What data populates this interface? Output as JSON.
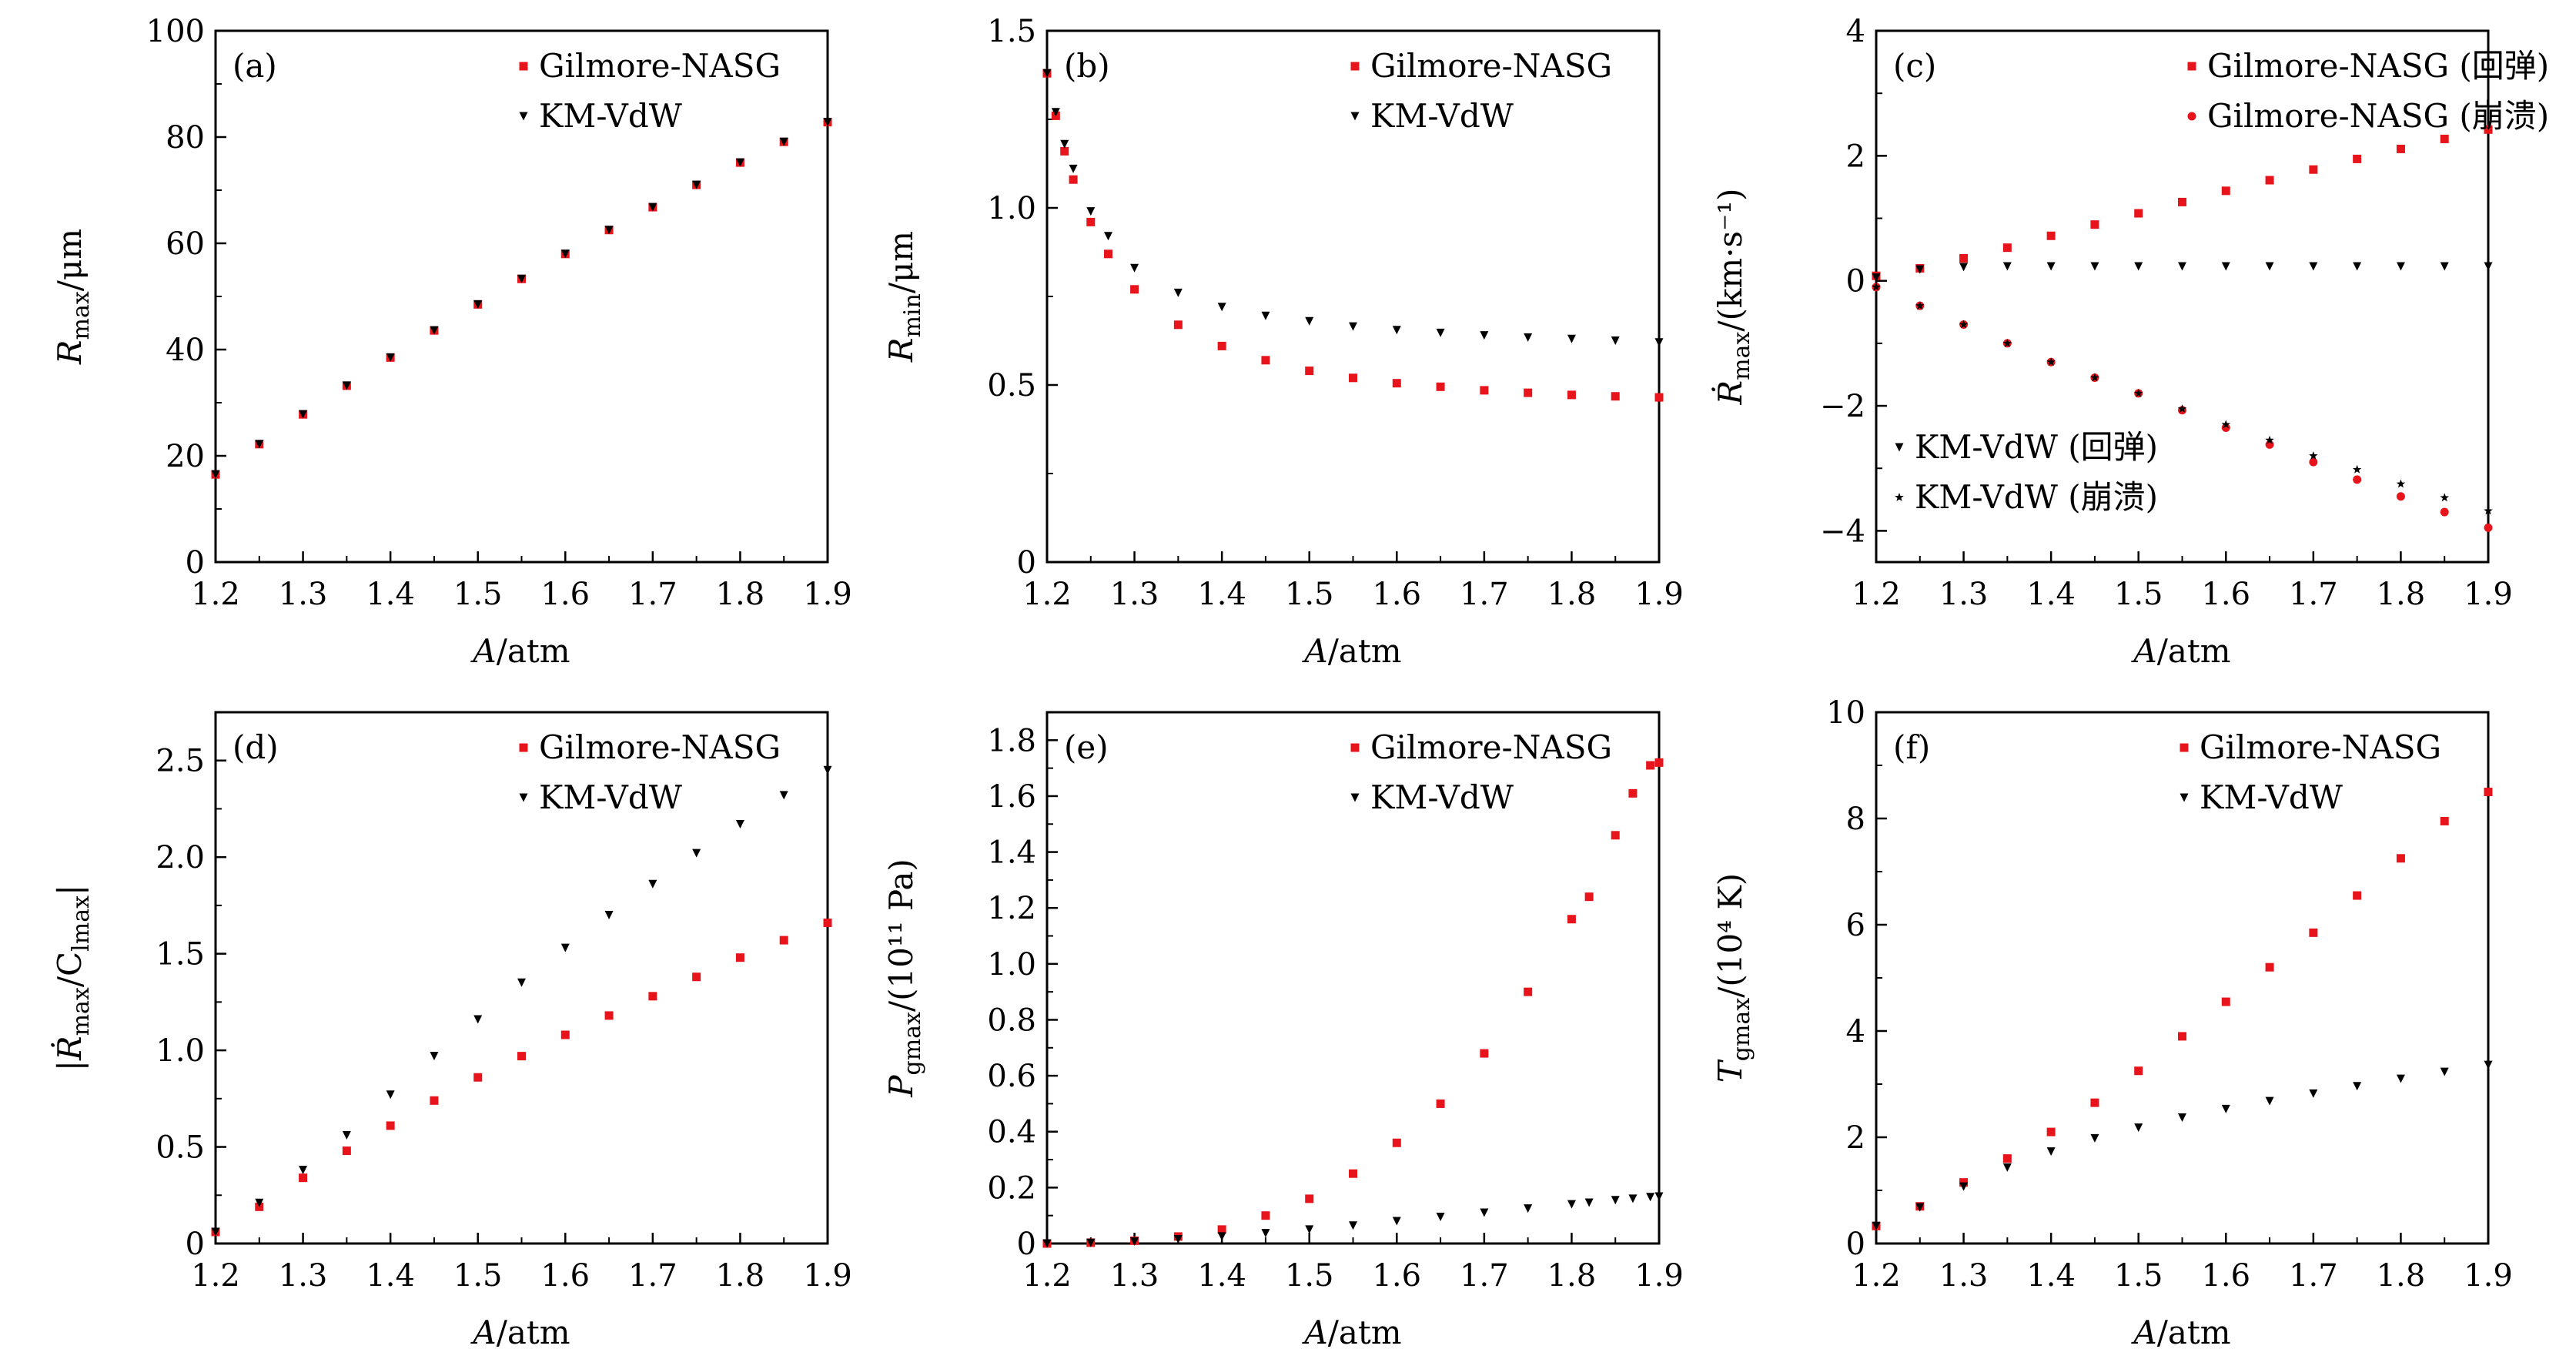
{
  "colors": {
    "gilmore": "#e8141c",
    "km": "#000000",
    "axis": "#000000"
  },
  "chart_data": [
    {
      "type": "scatter",
      "panel": "(a)",
      "xlabel": "A/atm",
      "ylabel": "R_max/μm",
      "xlim": [
        1.2,
        1.9
      ],
      "ylim": [
        0,
        100
      ],
      "xticks": [
        "1.2",
        "1.3",
        "1.4",
        "1.5",
        "1.6",
        "1.7",
        "1.8",
        "1.9"
      ],
      "yticks": [
        "0",
        "20",
        "40",
        "60",
        "80",
        "100"
      ],
      "ytick_values": [
        0,
        20,
        40,
        60,
        80,
        100
      ],
      "legend_position": "top-right",
      "x": [
        1.2,
        1.25,
        1.3,
        1.35,
        1.4,
        1.45,
        1.5,
        1.55,
        1.6,
        1.65,
        1.7,
        1.75,
        1.8,
        1.85,
        1.9
      ],
      "series": [
        {
          "name": "Gilmore-NASG",
          "marker": "square",
          "values": [
            16.5,
            22.2,
            27.8,
            33.2,
            38.5,
            43.6,
            48.5,
            53.3,
            58.0,
            62.5,
            66.8,
            71.0,
            75.2,
            79.1,
            82.8
          ]
        },
        {
          "name": "KM-VdW",
          "marker": "triangle-down",
          "values": [
            16.5,
            22.2,
            27.8,
            33.2,
            38.5,
            43.6,
            48.5,
            53.3,
            58.0,
            62.5,
            66.8,
            71.0,
            75.2,
            79.1,
            82.8
          ]
        }
      ]
    },
    {
      "type": "scatter",
      "panel": "(b)",
      "xlabel": "A/atm",
      "ylabel": "R_min/μm",
      "xlim": [
        1.2,
        1.9
      ],
      "ylim": [
        0,
        1.5
      ],
      "xticks": [
        "1.2",
        "1.3",
        "1.4",
        "1.5",
        "1.6",
        "1.7",
        "1.8",
        "1.9"
      ],
      "yticks": [
        "0",
        "0.5",
        "1.0",
        "1.5"
      ],
      "ytick_values": [
        0,
        0.5,
        1.0,
        1.5
      ],
      "legend_position": "top-right",
      "x": [
        1.2,
        1.21,
        1.22,
        1.23,
        1.25,
        1.27,
        1.3,
        1.35,
        1.4,
        1.45,
        1.5,
        1.55,
        1.6,
        1.65,
        1.7,
        1.75,
        1.8,
        1.85,
        1.9
      ],
      "series": [
        {
          "name": "Gilmore-NASG",
          "marker": "square",
          "values": [
            1.38,
            1.26,
            1.16,
            1.08,
            0.96,
            0.87,
            0.77,
            0.67,
            0.61,
            0.57,
            0.54,
            0.52,
            0.505,
            0.495,
            0.485,
            0.478,
            0.472,
            0.468,
            0.465
          ]
        },
        {
          "name": "KM-VdW",
          "marker": "triangle-down",
          "values": [
            1.38,
            1.27,
            1.18,
            1.11,
            0.99,
            0.92,
            0.83,
            0.76,
            0.72,
            0.695,
            0.68,
            0.665,
            0.655,
            0.647,
            0.64,
            0.634,
            0.63,
            0.625,
            0.62
          ]
        }
      ]
    },
    {
      "type": "scatter",
      "panel": "(c)",
      "xlabel": "A/atm",
      "ylabel": "Ṙ_max/(km·s⁻¹)",
      "xlim": [
        1.2,
        1.9
      ],
      "ylim": [
        -4.5,
        4
      ],
      "xticks": [
        "1.2",
        "1.3",
        "1.4",
        "1.5",
        "1.6",
        "1.7",
        "1.8",
        "1.9"
      ],
      "yticks": [
        "−4",
        "−2",
        "0",
        "2",
        "4"
      ],
      "ytick_values": [
        -4,
        -2,
        0,
        2,
        4
      ],
      "legend_position": "top-right and bottom-left",
      "x": [
        1.2,
        1.25,
        1.3,
        1.35,
        1.4,
        1.45,
        1.5,
        1.55,
        1.6,
        1.65,
        1.7,
        1.75,
        1.8,
        1.85,
        1.9
      ],
      "series": [
        {
          "name": "Gilmore-NASG (回弹)",
          "marker": "square",
          "color": "#e8141c",
          "values": [
            0.08,
            0.2,
            0.36,
            0.53,
            0.72,
            0.9,
            1.08,
            1.26,
            1.44,
            1.61,
            1.78,
            1.95,
            2.11,
            2.27,
            2.42
          ]
        },
        {
          "name": "Gilmore-NASG (崩溃)",
          "marker": "circle",
          "color": "#e8141c",
          "values": [
            -0.1,
            -0.4,
            -0.7,
            -1.0,
            -1.3,
            -1.55,
            -1.8,
            -2.07,
            -2.35,
            -2.62,
            -2.9,
            -3.18,
            -3.45,
            -3.7,
            -3.95
          ]
        },
        {
          "name": "KM-VdW (回弹)",
          "marker": "triangle-down",
          "color": "#000000",
          "values": [
            0.05,
            0.18,
            0.22,
            0.23,
            0.23,
            0.23,
            0.23,
            0.23,
            0.23,
            0.23,
            0.23,
            0.23,
            0.23,
            0.23,
            0.23
          ]
        },
        {
          "name": "KM-VdW (崩溃)",
          "marker": "star",
          "color": "#000000",
          "values": [
            -0.1,
            -0.4,
            -0.7,
            -1.0,
            -1.3,
            -1.55,
            -1.8,
            -2.05,
            -2.3,
            -2.55,
            -2.8,
            -3.02,
            -3.25,
            -3.47,
            -3.68
          ]
        }
      ]
    },
    {
      "type": "scatter",
      "panel": "(d)",
      "xlabel": "A/atm",
      "ylabel": "|Ṙ_max/C_lmax|",
      "xlim": [
        1.2,
        1.9
      ],
      "ylim": [
        0,
        2.75
      ],
      "xticks": [
        "1.2",
        "1.3",
        "1.4",
        "1.5",
        "1.6",
        "1.7",
        "1.8",
        "1.9"
      ],
      "yticks": [
        "0",
        "0.5",
        "1.0",
        "1.5",
        "2.0",
        "2.5"
      ],
      "ytick_values": [
        0,
        0.5,
        1.0,
        1.5,
        2.0,
        2.5
      ],
      "legend_position": "top-right",
      "x": [
        1.2,
        1.25,
        1.3,
        1.35,
        1.4,
        1.45,
        1.5,
        1.55,
        1.6,
        1.65,
        1.7,
        1.75,
        1.8,
        1.85,
        1.9
      ],
      "series": [
        {
          "name": "Gilmore-NASG",
          "marker": "square",
          "values": [
            0.06,
            0.19,
            0.34,
            0.48,
            0.61,
            0.74,
            0.86,
            0.97,
            1.08,
            1.18,
            1.28,
            1.38,
            1.48,
            1.57,
            1.66
          ]
        },
        {
          "name": "KM-VdW",
          "marker": "triangle-down",
          "values": [
            0.06,
            0.21,
            0.38,
            0.56,
            0.77,
            0.97,
            1.16,
            1.35,
            1.53,
            1.7,
            1.86,
            2.02,
            2.17,
            2.32,
            2.45
          ]
        }
      ]
    },
    {
      "type": "scatter",
      "panel": "(e)",
      "xlabel": "A/atm",
      "ylabel": "P_gmax/(10¹¹ Pa)",
      "xlim": [
        1.2,
        1.9
      ],
      "ylim": [
        0,
        1.9
      ],
      "xticks": [
        "1.2",
        "1.3",
        "1.4",
        "1.5",
        "1.6",
        "1.7",
        "1.8",
        "1.9"
      ],
      "yticks": [
        "0",
        "0.2",
        "0.4",
        "0.6",
        "0.8",
        "1.0",
        "1.2",
        "1.4",
        "1.6",
        "1.8"
      ],
      "ytick_values": [
        0,
        0.2,
        0.4,
        0.6,
        0.8,
        1.0,
        1.2,
        1.4,
        1.6,
        1.8
      ],
      "legend_position": "top-right",
      "x": [
        1.2,
        1.25,
        1.3,
        1.35,
        1.4,
        1.45,
        1.5,
        1.55,
        1.6,
        1.65,
        1.7,
        1.75,
        1.8,
        1.82,
        1.85,
        1.87,
        1.89,
        1.9
      ],
      "series": [
        {
          "name": "Gilmore-NASG",
          "marker": "square",
          "values": [
            0.0,
            0.003,
            0.01,
            0.025,
            0.05,
            0.1,
            0.16,
            0.25,
            0.36,
            0.5,
            0.68,
            0.9,
            1.16,
            1.24,
            1.46,
            1.61,
            1.71,
            1.72
          ]
        },
        {
          "name": "KM-VdW",
          "marker": "triangle-down",
          "values": [
            0.0,
            0.002,
            0.007,
            0.015,
            0.025,
            0.037,
            0.05,
            0.064,
            0.08,
            0.095,
            0.11,
            0.125,
            0.14,
            0.146,
            0.155,
            0.16,
            0.166,
            0.168
          ]
        }
      ]
    },
    {
      "type": "scatter",
      "panel": "(f)",
      "xlabel": "A/atm",
      "ylabel": "T_gmax/(10⁴ K)",
      "xlim": [
        1.2,
        1.9
      ],
      "ylim": [
        0,
        10
      ],
      "xticks": [
        "1.2",
        "1.3",
        "1.4",
        "1.5",
        "1.6",
        "1.7",
        "1.8",
        "1.9"
      ],
      "yticks": [
        "0",
        "2",
        "4",
        "6",
        "8",
        "10"
      ],
      "ytick_values": [
        0,
        2,
        4,
        6,
        8,
        10
      ],
      "legend_position": "top-right",
      "x": [
        1.2,
        1.25,
        1.3,
        1.35,
        1.4,
        1.45,
        1.5,
        1.55,
        1.6,
        1.65,
        1.7,
        1.75,
        1.8,
        1.85,
        1.9
      ],
      "series": [
        {
          "name": "Gilmore-NASG",
          "marker": "square",
          "values": [
            0.33,
            0.7,
            1.15,
            1.6,
            2.1,
            2.65,
            3.25,
            3.9,
            4.55,
            5.2,
            5.85,
            6.55,
            7.25,
            7.95,
            8.5
          ]
        },
        {
          "name": "KM-VdW",
          "marker": "triangle-down",
          "values": [
            0.33,
            0.68,
            1.07,
            1.43,
            1.73,
            1.98,
            2.18,
            2.37,
            2.53,
            2.68,
            2.82,
            2.96,
            3.1,
            3.23,
            3.36
          ]
        }
      ]
    }
  ],
  "panels_text": [
    {
      "label": "(a)",
      "ylabel_main": "R",
      "ylabel_sub": "max",
      "ylabel_rest": "/μm",
      "xlabel_main": "A",
      "xlabel_rest": "/atm",
      "legend": [
        "Gilmore-NASG",
        "KM-VdW"
      ]
    },
    {
      "label": "(b)",
      "ylabel_main": "R",
      "ylabel_sub": "min",
      "ylabel_rest": "/μm",
      "xlabel_main": "A",
      "xlabel_rest": "/atm",
      "legend": [
        "Gilmore-NASG",
        "KM-VdW"
      ]
    },
    {
      "label": "(c)",
      "ylabel_main": "Ṙ",
      "ylabel_sub": "max",
      "ylabel_rest": "/(km·s⁻¹)",
      "xlabel_main": "A",
      "xlabel_rest": "/atm",
      "legend": [
        "Gilmore-NASG (回弹)",
        "Gilmore-NASG (崩溃)",
        "KM-VdW (回弹)",
        "KM-VdW (崩溃)"
      ]
    },
    {
      "label": "(d)",
      "ylabel_main": "|Ṙ",
      "ylabel_sub": "max",
      "ylabel_rest": "/C",
      "ylabel_sub2": "lmax",
      "ylabel_end": "|",
      "xlabel_main": "A",
      "xlabel_rest": "/atm",
      "legend": [
        "Gilmore-NASG",
        "KM-VdW"
      ]
    },
    {
      "label": "(e)",
      "ylabel_main": "P",
      "ylabel_sub": "gmax",
      "ylabel_rest": "/(10¹¹ Pa)",
      "xlabel_main": "A",
      "xlabel_rest": "/atm",
      "legend": [
        "Gilmore-NASG",
        "KM-VdW"
      ]
    },
    {
      "label": "(f)",
      "ylabel_main": "T",
      "ylabel_sub": "gmax",
      "ylabel_rest": "/(10⁴ K)",
      "xlabel_main": "A",
      "xlabel_rest": "/atm",
      "legend": [
        "Gilmore-NASG",
        "KM-VdW"
      ]
    }
  ]
}
